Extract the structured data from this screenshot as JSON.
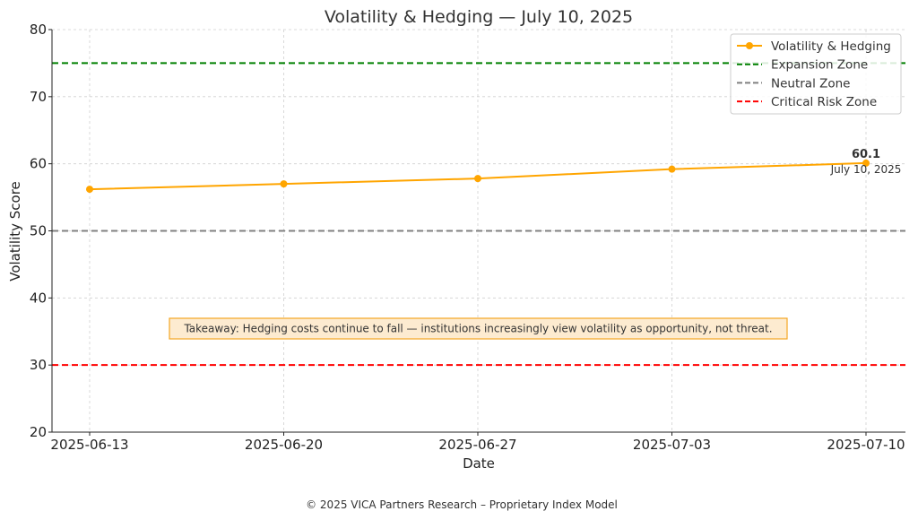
{
  "chart_data": {
    "type": "line",
    "title": "Volatility & Hedging — July 10, 2025",
    "xlabel": "Date",
    "ylabel": "Volatility Score",
    "ylim": [
      20,
      80
    ],
    "yticks": [
      20,
      30,
      40,
      50,
      60,
      70,
      80
    ],
    "categories": [
      "2025-06-13",
      "2025-06-20",
      "2025-06-27",
      "2025-07-03",
      "2025-07-10"
    ],
    "grid": true,
    "legend_position": "top-right",
    "series": [
      {
        "name": "Volatility & Hedging",
        "color": "#FFA500",
        "marker": "circle",
        "values": [
          56.2,
          57.0,
          57.8,
          59.2,
          60.1
        ]
      }
    ],
    "reference_lines": [
      {
        "name": "Expansion Zone",
        "y": 75,
        "color": "#008000",
        "style": "dashed"
      },
      {
        "name": "Neutral Zone",
        "y": 50,
        "color": "#808080",
        "style": "dashed"
      },
      {
        "name": "Critical Risk Zone",
        "y": 30,
        "color": "#FF0000",
        "style": "dashed"
      }
    ],
    "annotation": {
      "value": "60.1",
      "date": "July 10, 2025"
    },
    "takeaway": "Takeaway: Hedging costs continue to fall — institutions increasingly view volatility as opportunity, not threat.",
    "footer": "© 2025 VICA Partners Research – Proprietary Index Model"
  }
}
